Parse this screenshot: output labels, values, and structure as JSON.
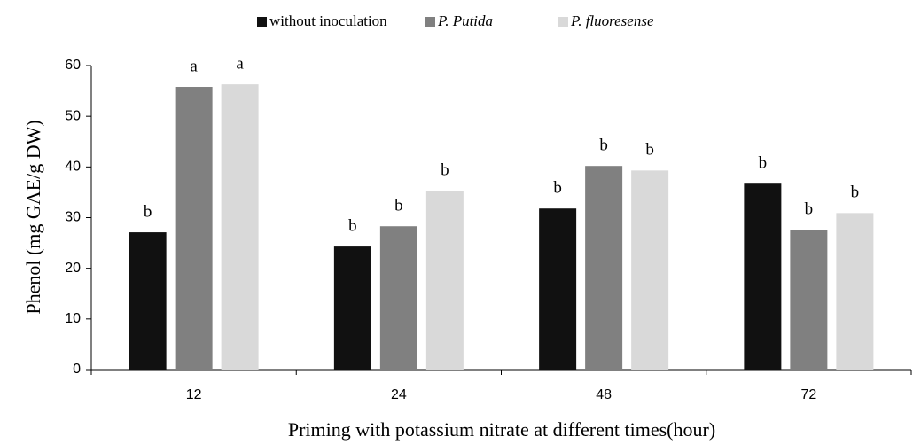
{
  "chart_data": {
    "type": "bar",
    "x_label": "Priming with potassium nitrate at different times(hour)",
    "y_label": "Phenol (mg GAE/g DW)",
    "categories": [
      "12",
      "24",
      "48",
      "72"
    ],
    "series": [
      {
        "name": "without inoculation",
        "color": "#111111",
        "italic": false,
        "values": [
          27.1,
          24.3,
          31.8,
          36.7
        ],
        "labels": [
          "b",
          "b",
          "b",
          "b"
        ]
      },
      {
        "name": "P. Putida",
        "color": "#808080",
        "italic": true,
        "values": [
          55.8,
          28.3,
          40.2,
          27.6
        ],
        "labels": [
          "a",
          "b",
          "b",
          "b"
        ]
      },
      {
        "name": "P. fluoresense",
        "color": "#d9d9d9",
        "italic": true,
        "values": [
          56.3,
          35.3,
          39.3,
          30.9
        ],
        "labels": [
          "a",
          "b",
          "b",
          "b"
        ]
      }
    ],
    "ylim": [
      0,
      60
    ],
    "yticks": [
      0,
      10,
      20,
      30,
      40,
      50,
      60
    ],
    "grid": false,
    "legend": "top"
  }
}
